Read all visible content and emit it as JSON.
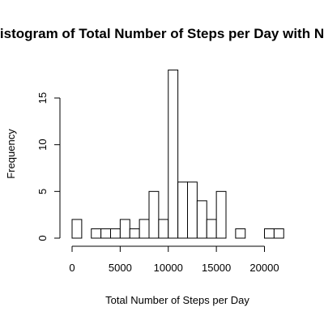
{
  "chart_data": {
    "type": "bar",
    "title": "Histogram of Total Number of Steps per Day with NA",
    "xlabel": "Total Number of Steps per Day",
    "ylabel": "Frequency",
    "bin_width": 1000,
    "bins": [
      {
        "start": 0,
        "end": 1000,
        "count": 2
      },
      {
        "start": 1000,
        "end": 2000,
        "count": 0
      },
      {
        "start": 2000,
        "end": 3000,
        "count": 1
      },
      {
        "start": 3000,
        "end": 4000,
        "count": 1
      },
      {
        "start": 4000,
        "end": 5000,
        "count": 1
      },
      {
        "start": 5000,
        "end": 6000,
        "count": 2
      },
      {
        "start": 6000,
        "end": 7000,
        "count": 1
      },
      {
        "start": 7000,
        "end": 8000,
        "count": 2
      },
      {
        "start": 8000,
        "end": 9000,
        "count": 5
      },
      {
        "start": 9000,
        "end": 10000,
        "count": 2
      },
      {
        "start": 10000,
        "end": 11000,
        "count": 18
      },
      {
        "start": 11000,
        "end": 12000,
        "count": 6
      },
      {
        "start": 12000,
        "end": 13000,
        "count": 6
      },
      {
        "start": 13000,
        "end": 14000,
        "count": 4
      },
      {
        "start": 14000,
        "end": 15000,
        "count": 2
      },
      {
        "start": 15000,
        "end": 16000,
        "count": 5
      },
      {
        "start": 16000,
        "end": 17000,
        "count": 0
      },
      {
        "start": 17000,
        "end": 18000,
        "count": 1
      },
      {
        "start": 18000,
        "end": 19000,
        "count": 0
      },
      {
        "start": 19000,
        "end": 20000,
        "count": 0
      },
      {
        "start": 20000,
        "end": 21000,
        "count": 1
      },
      {
        "start": 21000,
        "end": 22000,
        "count": 1
      }
    ],
    "xlim": [
      0,
      22000
    ],
    "ylim": [
      0,
      18
    ],
    "x_ticks": [
      0,
      5000,
      10000,
      15000,
      20000
    ],
    "y_ticks": [
      0,
      5,
      10,
      15
    ],
    "grid": false,
    "legend": "none",
    "bar_fill": "#ffffff",
    "bar_stroke": "#000000"
  }
}
